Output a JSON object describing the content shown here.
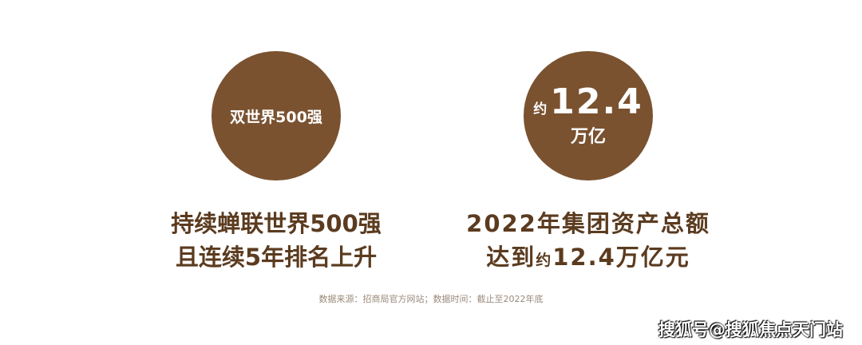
{
  "left": {
    "circle_text": "双世界500强",
    "caption_line1": "持续蝉联世界500强",
    "caption_line2": "且连续5年排名上升"
  },
  "right": {
    "circle_prefix": "约",
    "circle_number": "12.4",
    "circle_unit": "万亿",
    "caption_line1": "2022年集团资产总额",
    "caption_line2_a": "达到",
    "caption_line2_small": "约",
    "caption_line2_b": "12.4万亿元"
  },
  "source_note": "数据来源：招商局官方网站；数据时间：截止至2022年底",
  "watermark": "搜狐号@搜狐焦点天门站",
  "colors": {
    "circle": "#7a5230",
    "caption": "#5b3b1f",
    "note": "#9a8a7a"
  }
}
